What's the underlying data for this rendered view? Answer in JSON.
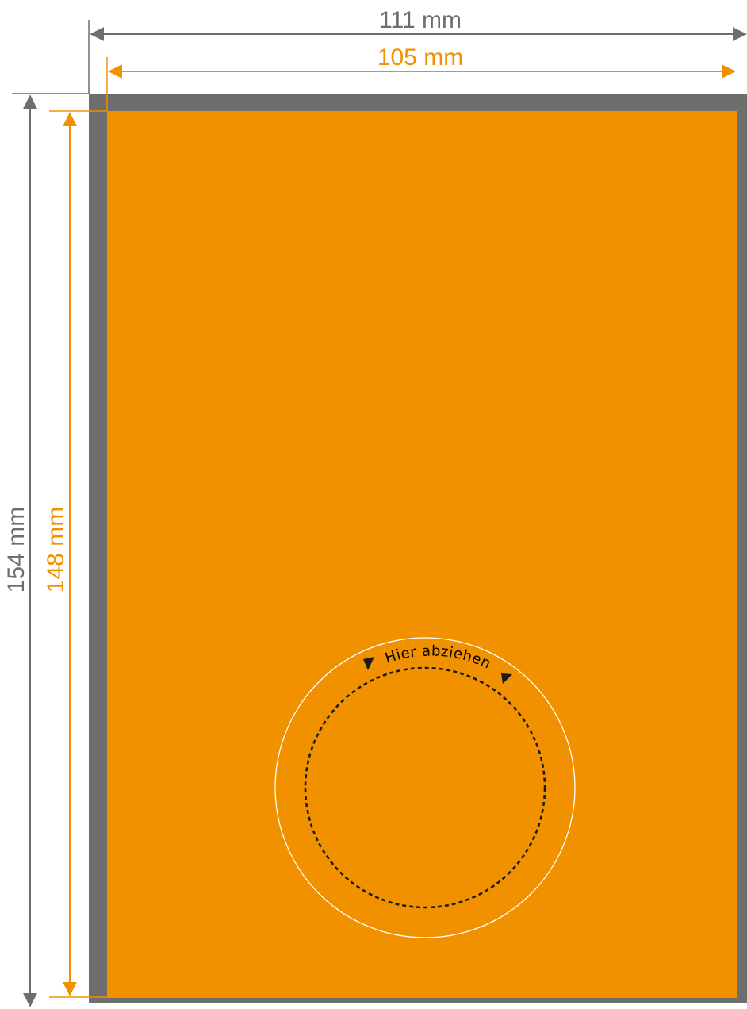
{
  "dimensions": {
    "outer_width": "111 mm",
    "inner_width": "105 mm",
    "outer_height": "154 mm",
    "inner_height": "148 mm"
  },
  "peel_label": "Hier abziehen",
  "colors": {
    "bleed_gray": "#6f6e6d",
    "trim_orange": "#f29100",
    "dimension_gray": "#6f6e6d",
    "dimension_orange": "#f29100",
    "perforation": "#1a1a1a",
    "outer_ring": "#ffffff"
  }
}
